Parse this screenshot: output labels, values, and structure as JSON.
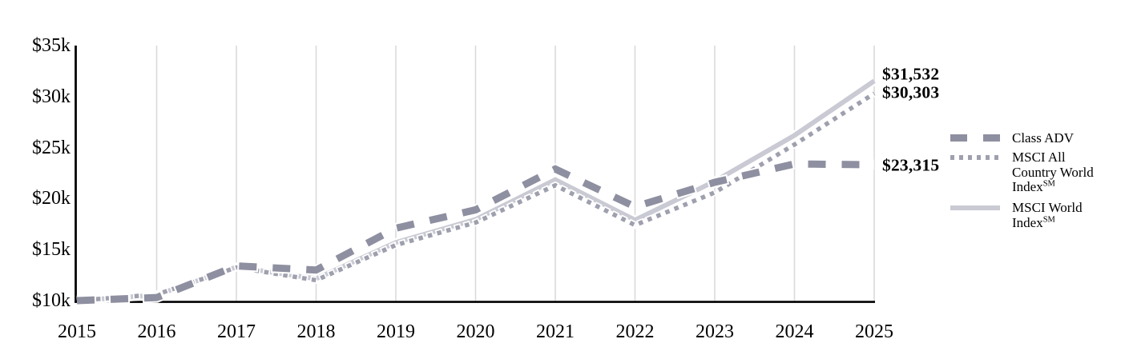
{
  "chart_data": {
    "type": "line",
    "x_labels": [
      "2015",
      "2016",
      "2017",
      "2018",
      "2019",
      "2020",
      "2021",
      "2022",
      "2023",
      "2024",
      "2025"
    ],
    "series": [
      {
        "name": "Class ADV",
        "style": "dashed",
        "color": "#8E8FA0",
        "values": [
          10000,
          10300,
          13400,
          13000,
          17100,
          18900,
          22900,
          19200,
          21600,
          23400,
          23315
        ],
        "end_label": "$23,315"
      },
      {
        "name": "MSCI All Country World Index℠",
        "style": "dotted",
        "color": "#9FA0AE",
        "values": [
          10000,
          10600,
          13250,
          12000,
          15450,
          17650,
          21300,
          17400,
          20600,
          25300,
          30303
        ],
        "end_label": "$30,303"
      },
      {
        "name": "MSCI World Index℠",
        "style": "solid",
        "color": "#C9CAD3",
        "values": [
          10000,
          10550,
          13300,
          12150,
          15700,
          17950,
          21850,
          17900,
          21700,
          26200,
          31532
        ],
        "end_label": "$31,532"
      }
    ],
    "ylim": [
      10000,
      35000
    ],
    "ytick_step": 5000,
    "ytick_labels": [
      "$10k",
      "$15k",
      "$20k",
      "$25k",
      "$30k",
      "$35k"
    ],
    "grid": "vertical-only",
    "legend_position": "right"
  },
  "colors": {
    "gridline": "#DADADE",
    "axis": "#000000",
    "halo": "#FFFFFF",
    "text": "#000000"
  },
  "legend": {
    "items": [
      {
        "label": "Class ADV",
        "sm": ""
      },
      {
        "label": "MSCI All Country World Index",
        "sm": "SM"
      },
      {
        "label": "MSCI World Index",
        "sm": "SM"
      }
    ]
  }
}
